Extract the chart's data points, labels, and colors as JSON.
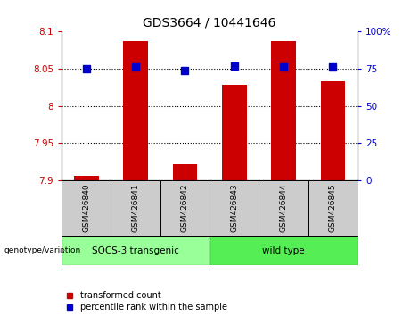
{
  "title": "GDS3664 / 10441646",
  "categories": [
    "GSM426840",
    "GSM426841",
    "GSM426842",
    "GSM426843",
    "GSM426844",
    "GSM426845"
  ],
  "red_values": [
    7.906,
    8.087,
    7.921,
    8.028,
    8.087,
    8.033
  ],
  "blue_values": [
    75,
    76,
    74,
    77,
    76,
    76
  ],
  "ylim_left": [
    7.9,
    8.1
  ],
  "ylim_right": [
    0,
    100
  ],
  "yticks_left": [
    7.9,
    7.95,
    8.0,
    8.05,
    8.1
  ],
  "yticks_right": [
    0,
    25,
    50,
    75,
    100
  ],
  "ytick_labels_left": [
    "7.9",
    "7.95",
    "8",
    "8.05",
    "8.1"
  ],
  "ytick_labels_right": [
    "0",
    "25",
    "50",
    "75",
    "100%"
  ],
  "grid_lines": [
    7.95,
    8.0,
    8.05
  ],
  "group1_label": "SOCS-3 transgenic",
  "group2_label": "wild type",
  "group1_indices": [
    0,
    1,
    2
  ],
  "group2_indices": [
    3,
    4,
    5
  ],
  "group_label": "genotype/variation",
  "legend_red": "transformed count",
  "legend_blue": "percentile rank within the sample",
  "bar_color": "#CC0000",
  "dot_color": "#0000CC",
  "group1_color": "#99FF99",
  "group2_color": "#55EE55",
  "bar_bottom": 7.9,
  "blue_dot_size": 35,
  "bar_width": 0.5
}
